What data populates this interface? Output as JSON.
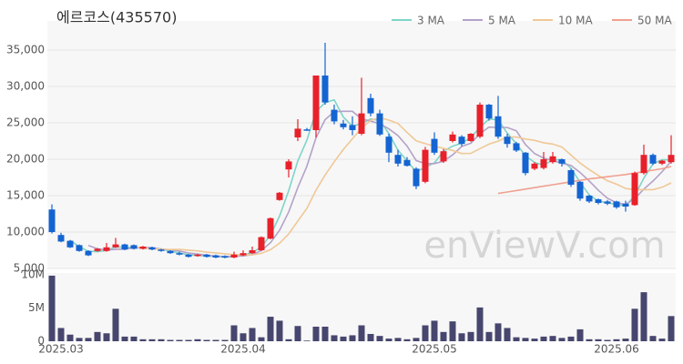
{
  "chart_data": [
    {
      "type": "candlestick",
      "title": "에르코스(435570)",
      "watermark": "enViewV.com",
      "up_color": "#e8202a",
      "down_color": "#1464d2",
      "legend": "top-right",
      "grid": true,
      "ylim": [
        5000,
        39000
      ],
      "yticks": [
        {
          "value": 5000,
          "label": "5,000"
        },
        {
          "value": 10000,
          "label": "10,000"
        },
        {
          "value": 15000,
          "label": "15,000"
        },
        {
          "value": 20000,
          "label": "20,000"
        },
        {
          "value": 25000,
          "label": "25,000"
        },
        {
          "value": 30000,
          "label": "30,000"
        },
        {
          "value": 35000,
          "label": "35,000"
        }
      ],
      "open": [
        13100,
        9600,
        8800,
        8200,
        7400,
        7400,
        7400,
        7900,
        8300,
        8200,
        7700,
        7900,
        7600,
        7400,
        7100,
        6900,
        6700,
        6900,
        6800,
        6700,
        6500,
        6800,
        7100,
        7500,
        9100,
        14400,
        18600,
        23000,
        24100,
        24000,
        31500,
        26800,
        24900,
        24700,
        23500,
        28400,
        26300,
        23100,
        20600,
        19900,
        18700,
        16900,
        22800,
        19700,
        22500,
        23100,
        22500,
        23100,
        27500,
        25900,
        23100,
        22200,
        20900,
        18700,
        18800,
        19600,
        20000,
        18500,
        16900,
        15000,
        14500,
        14200,
        14200,
        13900,
        13700,
        18100,
        20600,
        19400,
        19600
      ],
      "high": [
        13800,
        9900,
        8900,
        8300,
        7500,
        7800,
        8500,
        9200,
        8400,
        8300,
        8100,
        8000,
        7700,
        7500,
        7300,
        7000,
        7000,
        7000,
        6900,
        6800,
        7300,
        7500,
        8000,
        9400,
        12000,
        15500,
        20000,
        25500,
        24300,
        31500,
        36000,
        27500,
        25400,
        25900,
        31200,
        29000,
        26800,
        23500,
        21300,
        20300,
        18900,
        21700,
        23700,
        21400,
        23800,
        23300,
        23600,
        27800,
        27600,
        28700,
        23500,
        22400,
        21000,
        19600,
        21000,
        21000,
        20100,
        18700,
        17000,
        15100,
        14600,
        14400,
        14300,
        14300,
        18300,
        22000,
        20800,
        19900,
        23300
      ],
      "low": [
        9800,
        8600,
        7800,
        7300,
        6700,
        7300,
        7300,
        7800,
        7500,
        7600,
        7600,
        7500,
        7300,
        7000,
        6800,
        6500,
        6600,
        6500,
        6400,
        6400,
        6400,
        6700,
        7000,
        7400,
        9000,
        14300,
        17500,
        22500,
        23900,
        23000,
        27500,
        24800,
        24100,
        23300,
        23300,
        25900,
        23200,
        19600,
        19000,
        19000,
        15900,
        16700,
        20600,
        19500,
        22300,
        21800,
        22400,
        22900,
        25300,
        22800,
        21600,
        21000,
        17800,
        18500,
        18600,
        19400,
        19000,
        16200,
        14300,
        14000,
        13800,
        13700,
        13200,
        12800,
        13600,
        17900,
        19200,
        19200,
        19400
      ],
      "close": [
        10000,
        8700,
        7900,
        7400,
        6800,
        7700,
        7900,
        8300,
        7600,
        7700,
        8000,
        7600,
        7400,
        7100,
        6900,
        6600,
        6900,
        6600,
        6500,
        6500,
        6900,
        7100,
        7500,
        9300,
        11900,
        15400,
        19700,
        24200,
        24000,
        31500,
        27800,
        25200,
        24400,
        24000,
        26300,
        26300,
        23400,
        20900,
        19400,
        19100,
        16300,
        21300,
        20900,
        21100,
        23400,
        22100,
        23500,
        27500,
        25600,
        23100,
        22100,
        21200,
        18100,
        19400,
        20000,
        20400,
        19400,
        16500,
        14600,
        14200,
        14000,
        13900,
        13400,
        13500,
        18100,
        20600,
        19400,
        19800,
        20600
      ],
      "series": [
        {
          "name": "3 MA",
          "color": "#7fd4c8",
          "values": [
            null,
            null,
            8867,
            8000,
            7367,
            7300,
            7467,
            7967,
            7933,
            7867,
            7767,
            7767,
            7667,
            7367,
            7133,
            6867,
            6800,
            6700,
            6667,
            6533,
            6633,
            6833,
            7167,
            7967,
            9567,
            12200,
            15667,
            19767,
            22633,
            26567,
            27767,
            28167,
            25800,
            24533,
            24900,
            25533,
            25333,
            23533,
            21233,
            19800,
            18267,
            18900,
            19500,
            21100,
            21800,
            22200,
            23000,
            24367,
            25533,
            25400,
            23600,
            22133,
            20467,
            19567,
            19167,
            19933,
            19933,
            18767,
            16833,
            15100,
            14267,
            14033,
            13767,
            13600,
            15000,
            17400,
            19367,
            19933,
            19933
          ]
        },
        {
          "name": "5 MA",
          "color": "#b4a2c8",
          "values": [
            null,
            null,
            null,
            null,
            8160,
            7700,
            7540,
            7620,
            7660,
            7840,
            7900,
            7840,
            7660,
            7560,
            7400,
            7120,
            6980,
            6820,
            6700,
            6620,
            6680,
            6720,
            6900,
            7460,
            8540,
            10240,
            12760,
            16100,
            19040,
            22960,
            25440,
            26540,
            26580,
            26580,
            25540,
            25240,
            24880,
            24180,
            23260,
            21820,
            19820,
            19400,
            19400,
            19740,
            20600,
            21760,
            22200,
            23520,
            24420,
            24360,
            24360,
            23900,
            22020,
            20780,
            20160,
            19820,
            19460,
            19140,
            18180,
            17020,
            15740,
            14640,
            14020,
            13800,
            14580,
            15900,
            17000,
            18280,
            19700
          ]
        },
        {
          "name": "10 MA",
          "color": "#f0c896",
          "values": [
            null,
            null,
            null,
            null,
            null,
            null,
            null,
            null,
            null,
            8000,
            7800,
            7690,
            7640,
            7610,
            7620,
            7510,
            7410,
            7240,
            7130,
            7010,
            6900,
            6850,
            6860,
            7080,
            7580,
            8460,
            9740,
            11500,
            13250,
            15750,
            17840,
            19650,
            21340,
            22810,
            24250,
            25340,
            25710,
            25380,
            24920,
            23680,
            22530,
            22140,
            21790,
            21500,
            21210,
            20790,
            20800,
            21460,
            22080,
            22480,
            23060,
            23050,
            22770,
            22600,
            22260,
            22090,
            21680,
            20580,
            19480,
            18590,
            17780,
            17050,
            16580,
            15990,
            15800,
            15820,
            15820,
            16150,
            16750
          ]
        },
        {
          "name": "50 MA",
          "color": "#f0a090",
          "values": [
            null,
            null,
            null,
            null,
            null,
            null,
            null,
            null,
            null,
            null,
            null,
            null,
            null,
            null,
            null,
            null,
            null,
            null,
            null,
            null,
            null,
            null,
            null,
            null,
            null,
            null,
            null,
            null,
            null,
            null,
            null,
            null,
            null,
            null,
            null,
            null,
            null,
            null,
            null,
            null,
            null,
            null,
            null,
            null,
            null,
            null,
            null,
            null,
            null,
            15300,
            15500,
            15700,
            15900,
            16100,
            16300,
            16500,
            16700,
            16900,
            17100,
            17300,
            17450,
            17600,
            17750,
            17900,
            18100,
            18300,
            18500,
            18700,
            19000
          ]
        }
      ]
    },
    {
      "type": "bar",
      "color": "#46466e",
      "ylim": [
        0,
        10.3
      ],
      "yticks": [
        0,
        {
          "value": 5,
          "label": "5M"
        },
        {
          "value": 10,
          "label": "10M"
        }
      ],
      "categories": [
        null,
        "2025.03",
        null,
        null,
        null,
        null,
        null,
        null,
        null,
        null,
        null,
        null,
        null,
        null,
        null,
        null,
        null,
        null,
        null,
        null,
        null,
        "2025.04",
        null,
        null,
        null,
        null,
        null,
        null,
        null,
        null,
        null,
        null,
        null,
        null,
        null,
        null,
        null,
        null,
        null,
        null,
        null,
        null,
        "2025.05",
        null,
        null,
        null,
        null,
        null,
        null,
        null,
        null,
        null,
        null,
        null,
        null,
        null,
        null,
        null,
        null,
        null,
        null,
        null,
        "2025.06",
        null,
        null,
        null,
        null,
        null,
        null
      ],
      "values": [
        9.9,
        2.0,
        1.0,
        0.5,
        0.5,
        1.4,
        1.2,
        4.9,
        0.7,
        0.7,
        0.3,
        0.3,
        0.3,
        0.2,
        0.2,
        0.2,
        0.3,
        0.2,
        0.2,
        0.2,
        2.4,
        1.2,
        2.0,
        0.6,
        3.7,
        3.1,
        0.3,
        2.3,
        0.1,
        2.2,
        2.2,
        0.9,
        0.7,
        0.9,
        2.4,
        1.1,
        0.8,
        0.4,
        0.5,
        0.3,
        0.5,
        2.4,
        3.1,
        1.4,
        3.0,
        1.2,
        1.4,
        5.1,
        1.4,
        2.7,
        2.0,
        0.6,
        0.5,
        0.4,
        0.7,
        0.8,
        0.5,
        0.7,
        1.8,
        0.3,
        0.3,
        0.2,
        0.3,
        0.4,
        4.9,
        7.4,
        0.8,
        0.4,
        3.8
      ]
    }
  ]
}
